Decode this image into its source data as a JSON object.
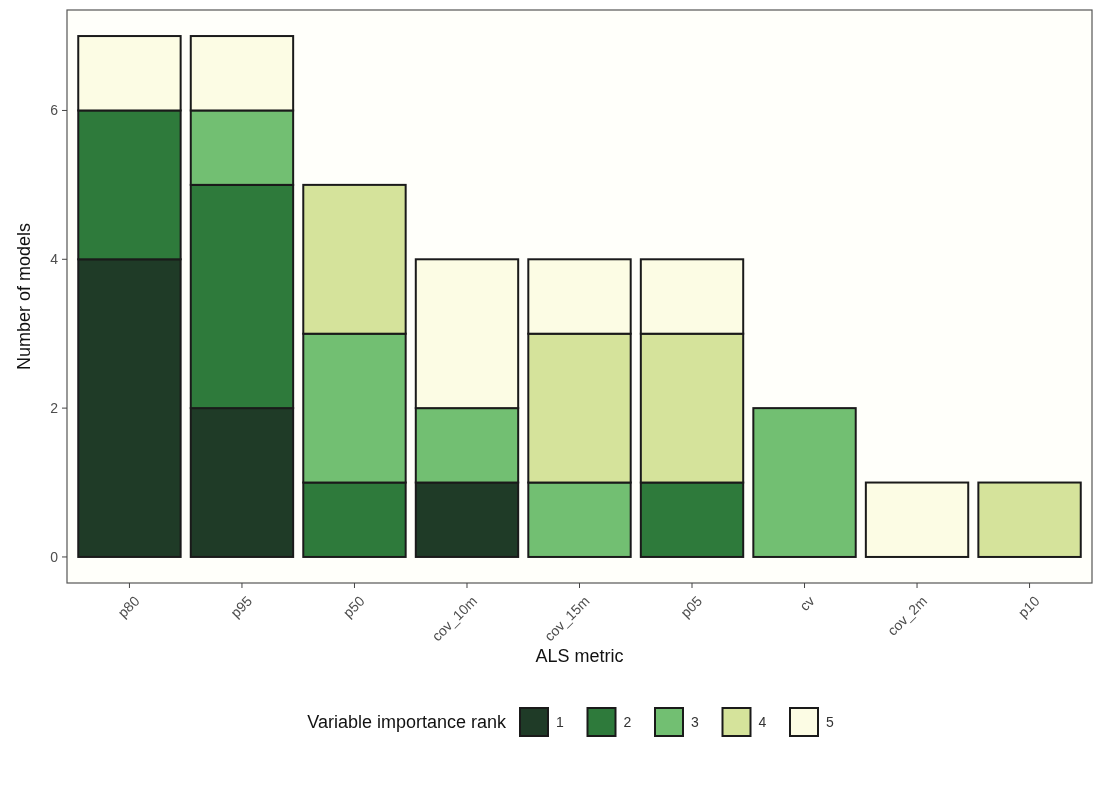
{
  "chart_data": {
    "type": "bar",
    "stacked": true,
    "xlabel": "ALS metric",
    "ylabel": "Number of models",
    "legend_title": "Variable importance rank",
    "legend": "bottom",
    "grid": false,
    "categories": [
      "p80",
      "p95",
      "p50",
      "cov_10m",
      "cov_15m",
      "p05",
      "cv",
      "cov_2m",
      "p10"
    ],
    "ylim": [
      -0.35,
      7.35
    ],
    "yticks": [
      0,
      2,
      4,
      6
    ],
    "series": [
      {
        "name": "1",
        "color": "#1f3b27",
        "values": [
          4,
          2,
          null,
          1,
          null,
          null,
          null,
          null,
          null
        ]
      },
      {
        "name": "2",
        "color": "#2e7a3b",
        "values": [
          2,
          3,
          1,
          null,
          null,
          1,
          null,
          null,
          null
        ]
      },
      {
        "name": "3",
        "color": "#72bf72",
        "values": [
          null,
          1,
          2,
          1,
          1,
          null,
          2,
          null,
          null
        ]
      },
      {
        "name": "4",
        "color": "#d5e39b",
        "values": [
          null,
          null,
          2,
          null,
          2,
          2,
          null,
          null,
          1
        ]
      },
      {
        "name": "5",
        "color": "#fcfce4",
        "values": [
          1,
          1,
          null,
          2,
          1,
          1,
          null,
          1,
          null
        ]
      }
    ]
  }
}
